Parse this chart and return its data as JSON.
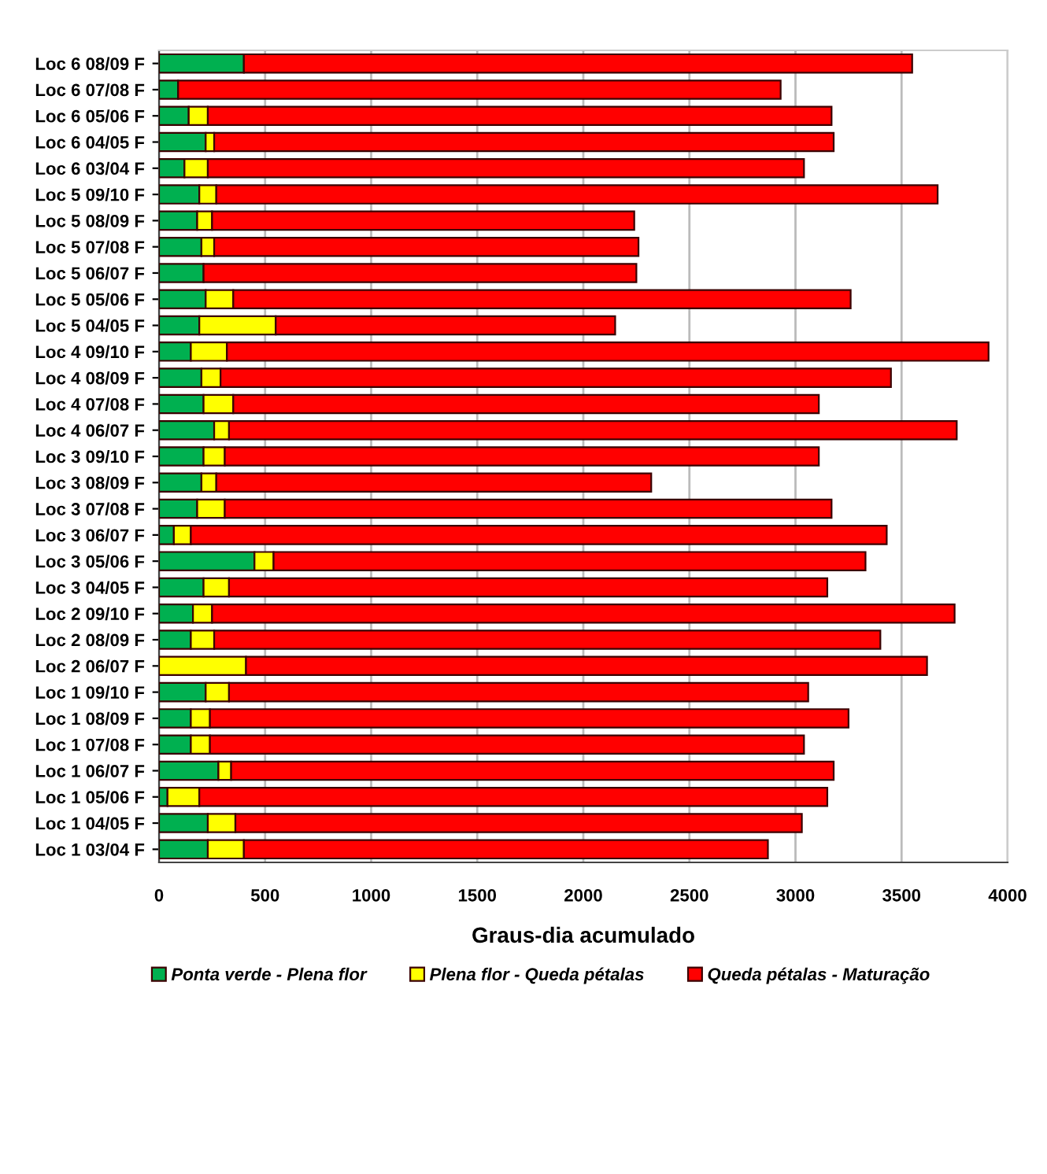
{
  "chart_data": {
    "type": "bar",
    "orientation": "horizontal",
    "stacked": true,
    "xlabel": "Graus-dia acumulado",
    "categories": [
      "Loc 6 08/09 F",
      "Loc 6 07/08 F",
      "Loc 6 05/06 F",
      "Loc 6 04/05 F",
      "Loc 6 03/04 F",
      "Loc 5 09/10 F",
      "Loc 5 08/09 F",
      "Loc 5 07/08 F",
      "Loc 5 06/07 F",
      "Loc 5 05/06 F",
      "Loc 5 04/05 F",
      "Loc 4 09/10 F",
      "Loc 4 08/09 F",
      "Loc 4 07/08 F",
      "Loc 4 06/07 F",
      "Loc 3 09/10 F",
      "Loc 3 08/09 F",
      "Loc 3 07/08 F",
      "Loc 3 06/07 F",
      "Loc 3 05/06 F",
      "Loc 3 04/05 F",
      "Loc 2 09/10 F",
      "Loc 2 08/09 F",
      "Loc 2 06/07 F",
      "Loc 1 09/10 F",
      "Loc 1 08/09 F",
      "Loc 1 07/08 F",
      "Loc 1 06/07 F",
      "Loc 1 05/06 F",
      "Loc 1 04/05 F",
      "Loc 1 03/04 F"
    ],
    "series": [
      {
        "name": "Ponta verde - Plena flor",
        "color": "#00b050",
        "values": [
          400,
          90,
          140,
          220,
          120,
          190,
          180,
          200,
          210,
          220,
          190,
          150,
          200,
          210,
          260,
          210,
          200,
          180,
          70,
          450,
          210,
          160,
          150,
          0,
          220,
          150,
          150,
          280,
          40,
          230,
          230
        ]
      },
      {
        "name": "Plena flor - Queda pétalas",
        "color": "#ffff00",
        "values": [
          0,
          0,
          90,
          40,
          110,
          80,
          70,
          60,
          0,
          130,
          360,
          170,
          90,
          140,
          70,
          100,
          70,
          130,
          80,
          90,
          120,
          90,
          110,
          410,
          110,
          90,
          90,
          60,
          150,
          130,
          170
        ]
      },
      {
        "name": "Queda pétalas - Maturação",
        "color": "#ff0000",
        "values": [
          3150,
          2840,
          2940,
          2920,
          2810,
          3400,
          1990,
          2000,
          2040,
          2910,
          1600,
          3590,
          3160,
          2760,
          3430,
          2800,
          2050,
          2860,
          3280,
          2790,
          2820,
          3500,
          3140,
          3210,
          2730,
          3010,
          2800,
          2840,
          2960,
          2670,
          2470
        ]
      }
    ],
    "xlim": [
      0,
      4000
    ],
    "xticks": [
      0,
      500,
      1000,
      1500,
      2000,
      2500,
      3000,
      3500,
      4000
    ],
    "grid": "x",
    "legend": "bottom"
  }
}
